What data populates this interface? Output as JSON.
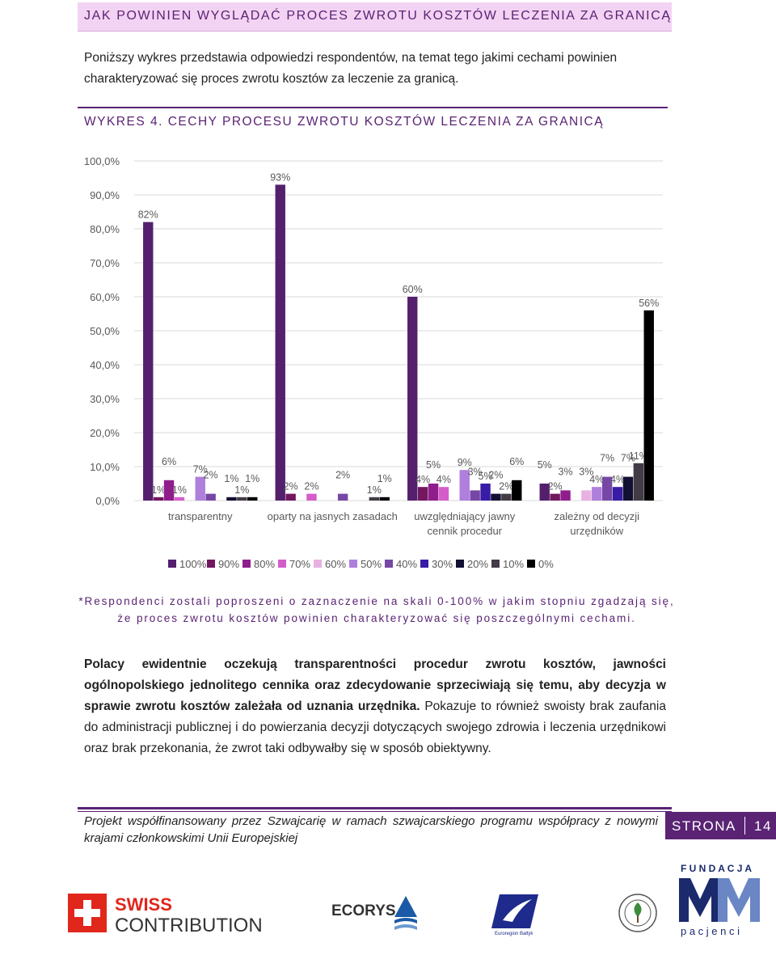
{
  "header": {
    "title": "JAK POWINIEN WYGLĄDAĆ  PROCES ZWROTU KOSZTÓW LECZENIA ZA GRANICĄ"
  },
  "intro": {
    "text": "Poniższy wykres przedstawia odpowiedzi respondentów, na temat tego jakimi cechami powinien charakteryzować się proces zwrotu kosztów za leczenie za granicą."
  },
  "chart": {
    "title": "WYKRES 4. CECHY PROCESU ZWROTU KOSZTÓW LECZENIA ZA GRANICĄ"
  },
  "chart_data": {
    "type": "bar",
    "title": "WYKRES 4. CECHY PROCESU ZWROTU KOSZTÓW LECZENIA ZA GRANICĄ",
    "categories": [
      "transparentny",
      "oparty na jasnych zasadach",
      "uwzględniający jawny cennik procedur",
      "zależny od decyzji urzędników"
    ],
    "series": [
      {
        "name": "100%",
        "color": "#54206e",
        "values": [
          82,
          93,
          60,
          5
        ]
      },
      {
        "name": "90%",
        "color": "#73175f",
        "values": [
          1,
          2,
          4,
          2
        ]
      },
      {
        "name": "80%",
        "color": "#8f1e8c",
        "values": [
          6,
          0,
          5,
          3
        ]
      },
      {
        "name": "70%",
        "color": "#d55dca",
        "values": [
          1,
          2,
          4,
          0
        ]
      },
      {
        "name": "60%",
        "color": "#e8b1e2",
        "values": [
          0,
          0,
          0,
          3
        ]
      },
      {
        "name": "50%",
        "color": "#ae7fdb",
        "values": [
          7,
          0,
          9,
          4
        ]
      },
      {
        "name": "40%",
        "color": "#7747a6",
        "values": [
          2,
          2,
          3,
          7
        ]
      },
      {
        "name": "30%",
        "color": "#381ba6",
        "values": [
          0,
          0,
          5,
          4
        ]
      },
      {
        "name": "20%",
        "color": "#131133",
        "values": [
          1,
          0,
          2,
          7
        ]
      },
      {
        "name": "10%",
        "color": "#433b46",
        "values": [
          1,
          1,
          2,
          11
        ]
      },
      {
        "name": "0%",
        "color": "#000000",
        "values": [
          1,
          1,
          6,
          56
        ]
      }
    ],
    "yticks": [
      "100,0%",
      "90,0%",
      "80,0%",
      "70,0%",
      "60,0%",
      "50,0%",
      "40,0%",
      "30,0%",
      "20,0%",
      "10,0%",
      "0,0%"
    ],
    "ylim": [
      0,
      100
    ],
    "grid": true,
    "legend": "bottom"
  },
  "note": {
    "line1": "*Respondenci zostali poproszeni o zaznaczenie na skali 0-100% w jakim stopniu zgadzają się,",
    "line2": "że proces zwrotu kosztów powinien charakteryzować się poszczególnymi cechami."
  },
  "body": {
    "bold": "Polacy ewidentnie oczekują transparentności procedur zwrotu kosztów, jawności ogólnopolskiego jednolitego cennika oraz zdecydowanie sprzeciwiają się temu, aby decyzja w sprawie zwrotu kosztów zależała od uznania urzędnika.",
    "rest": " Pokazuje to również swoisty brak zaufania do administracji publicznej i do powierzania decyzji dotyczących swojego zdrowia i leczenia urzędnikowi oraz brak przekonania, że zwrot taki odbywałby się w sposób obiektywny."
  },
  "footer": {
    "text": "Projekt współfinansowany przez Szwajcarię w ramach szwajcarskiego programu współpracy z nowymi krajami członkowskimi Unii Europejskiej",
    "page_label": "STRONA",
    "page_number": "14"
  },
  "logos": {
    "swiss_line1": "SWISS",
    "swiss_line2": "CONTRIBUTION",
    "ecorys": "ECORYS",
    "euroregion": "Euroregion Bałtyk",
    "fundacja_top": "F U N D A C J A",
    "fundacja_bottom": "p a c j e n c i"
  }
}
